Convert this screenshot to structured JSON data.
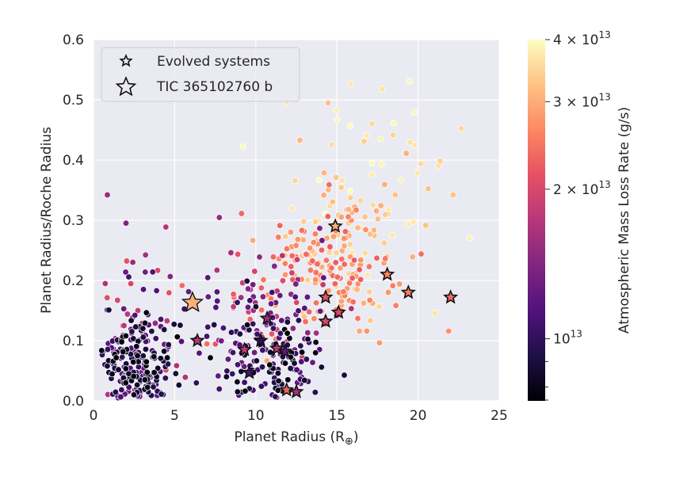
{
  "chart_data": {
    "type": "scatter",
    "title": "",
    "xlabel": "Planet Radius (R⊕)",
    "ylabel": "Planet Radius/Roche Radius",
    "xlim": [
      0,
      25
    ],
    "ylim": [
      0,
      0.6
    ],
    "xticks": [
      "0",
      "5",
      "10",
      "15",
      "20",
      "25"
    ],
    "yticks": [
      "0.0",
      "0.1",
      "0.2",
      "0.3",
      "0.4",
      "0.5",
      "0.6"
    ],
    "grid": true,
    "legend_position": "top-left",
    "colormap": "magma",
    "colorbar": {
      "label": "Atmospheric Mass Loss Rate (g/s)",
      "scale": "log",
      "min": 7500000000000.0,
      "max": 40000000000000.0,
      "ticks": [
        {
          "value": 10000000000000.0,
          "mantissa": "",
          "exp": "13"
        },
        {
          "value": 20000000000000.0,
          "mantissa": "2",
          "exp": "13"
        },
        {
          "value": 30000000000000.0,
          "mantissa": "3",
          "exp": "13"
        },
        {
          "value": 40000000000000.0,
          "mantissa": "4",
          "exp": "13"
        }
      ]
    },
    "series": [
      {
        "name": "Evolved systems",
        "marker": "star",
        "points": [
          [
            14.9,
            0.29,
            30000000000000.0
          ],
          [
            18.1,
            0.21,
            26000000000000.0
          ],
          [
            19.4,
            0.18,
            25000000000000.0
          ],
          [
            22.0,
            0.172,
            23000000000000.0
          ],
          [
            14.3,
            0.172,
            21000000000000.0
          ],
          [
            15.1,
            0.147,
            20000000000000.0
          ],
          [
            14.3,
            0.132,
            20000000000000.0
          ],
          [
            10.7,
            0.137,
            15000000000000.0
          ],
          [
            6.4,
            0.1,
            17000000000000.0
          ],
          [
            9.3,
            0.085,
            18000000000000.0
          ],
          [
            10.3,
            0.1,
            10000000000000.0
          ],
          [
            11.3,
            0.087,
            18000000000000.0
          ],
          [
            11.8,
            0.082,
            12000000000000.0
          ],
          [
            9.6,
            0.047,
            11000000000000.0
          ],
          [
            11.9,
            0.018,
            23000000000000.0
          ],
          [
            12.5,
            0.015,
            16000000000000.0
          ]
        ]
      },
      {
        "name": "TIC 365102760 b",
        "marker": "star-large",
        "points": [
          [
            6.1,
            0.163,
            30000000000000.0
          ]
        ]
      }
    ]
  }
}
